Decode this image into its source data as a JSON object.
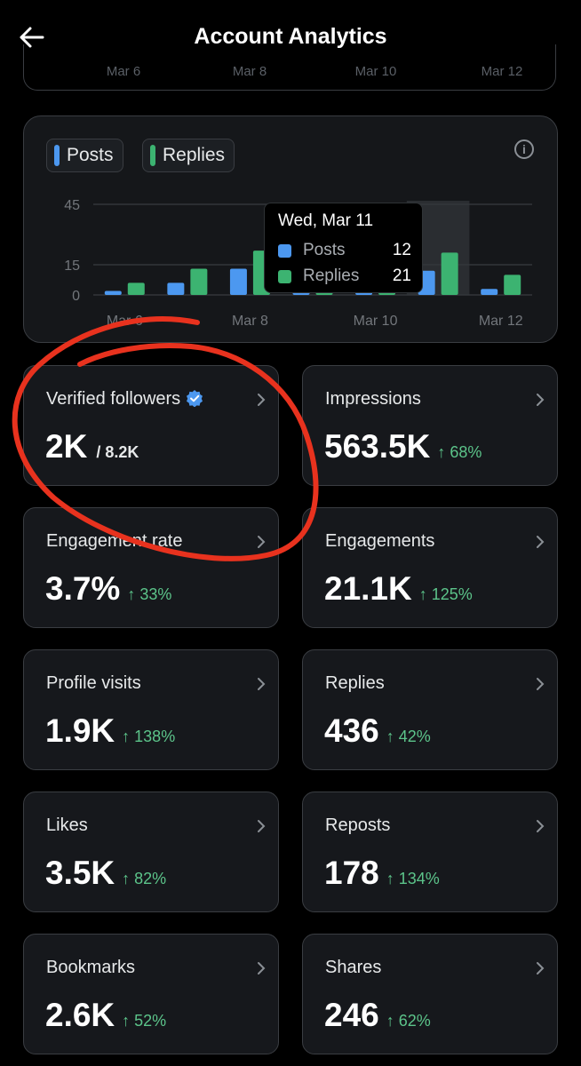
{
  "header": {
    "title": "Account Analytics",
    "back_icon": "arrow-left-icon"
  },
  "previous_chart": {
    "x_ticks": [
      "Mar 6",
      "Mar 8",
      "Mar 10",
      "Mar 12"
    ]
  },
  "legend": [
    {
      "label": "Posts",
      "color": "#4c98f0"
    },
    {
      "label": "Replies",
      "color": "#3cb371"
    }
  ],
  "chart_data": {
    "type": "bar",
    "categories": [
      "Mar 6",
      "Mar 7",
      "Mar 8",
      "Mar 9",
      "Mar 10",
      "Mar 11",
      "Mar 12"
    ],
    "x_tick_labels": [
      "Mar 6",
      "Mar 8",
      "Mar 10",
      "Mar 12"
    ],
    "y_ticks": [
      "45",
      "15",
      "0"
    ],
    "ylim": [
      0,
      45
    ],
    "series": [
      {
        "name": "Posts",
        "color": "#4c98f0",
        "values": [
          2,
          6,
          13,
          3,
          3,
          12,
          3
        ]
      },
      {
        "name": "Replies",
        "color": "#3cb371",
        "values": [
          6,
          13,
          22,
          3,
          3,
          21,
          10
        ]
      }
    ],
    "highlighted_category": "Mar 11",
    "grid": true
  },
  "tooltip": {
    "title": "Wed, Mar 11",
    "rows": [
      {
        "label": "Posts",
        "value": "12",
        "color": "#4c98f0"
      },
      {
        "label": "Replies",
        "value": "21",
        "color": "#3cb371"
      }
    ]
  },
  "metrics": [
    {
      "label": "Verified followers",
      "value": "2K",
      "sub": "/ 8.2K",
      "change": "",
      "verified_badge": true
    },
    {
      "label": "Impressions",
      "value": "563.5K",
      "sub": "",
      "change": "↑ 68%"
    },
    {
      "label": "Engagement rate",
      "value": "3.7%",
      "sub": "",
      "change": "↑ 33%"
    },
    {
      "label": "Engagements",
      "value": "21.1K",
      "sub": "",
      "change": "↑ 125%"
    },
    {
      "label": "Profile visits",
      "value": "1.9K",
      "sub": "",
      "change": "↑ 138%"
    },
    {
      "label": "Replies",
      "value": "436",
      "sub": "",
      "change": "↑ 42%"
    },
    {
      "label": "Likes",
      "value": "3.5K",
      "sub": "",
      "change": "↑ 82%"
    },
    {
      "label": "Reposts",
      "value": "178",
      "sub": "",
      "change": "↑ 134%"
    },
    {
      "label": "Bookmarks",
      "value": "2.6K",
      "sub": "",
      "change": "↑ 52%"
    },
    {
      "label": "Shares",
      "value": "246",
      "sub": "",
      "change": "↑ 62%"
    }
  ],
  "colors": {
    "positive_change": "#5cc48a",
    "annotation": "#e8321e",
    "verified_badge": "#4c98f0"
  }
}
